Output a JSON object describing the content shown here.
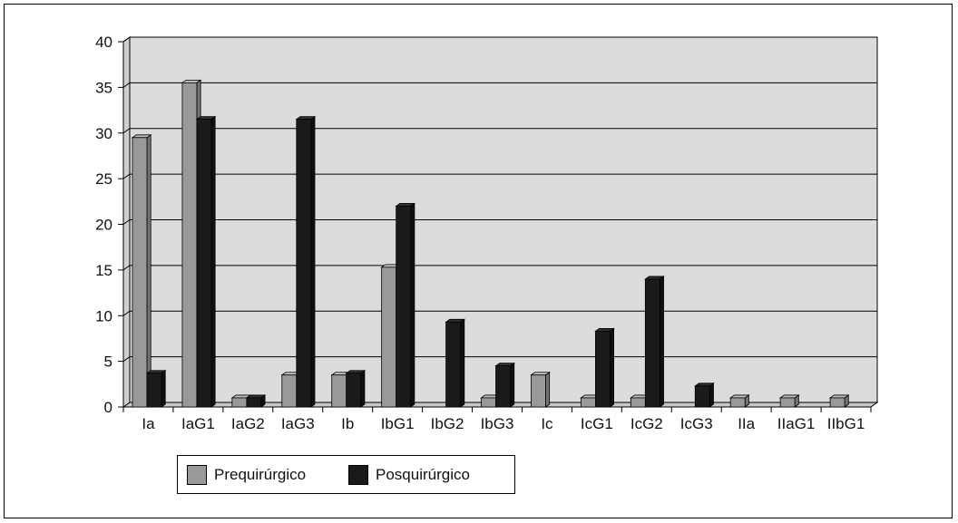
{
  "chart_data": {
    "type": "bar",
    "categories": [
      "Ia",
      "IaG1",
      "IaG2",
      "IaG3",
      "Ib",
      "IbG1",
      "IbG2",
      "IbG3",
      "Ic",
      "IcG1",
      "IcG2",
      "IcG3",
      "IIa",
      "IIaG1",
      "IIbG1"
    ],
    "series": [
      {
        "name": "Prequirúrgico",
        "color": "#999999",
        "values": [
          29.5,
          35.5,
          1,
          3.5,
          3.5,
          15.3,
          0,
          1,
          3.5,
          1,
          1,
          0,
          1,
          1,
          1
        ]
      },
      {
        "name": "Posquirúrgico",
        "color": "#1a1a1a",
        "values": [
          3.7,
          31.5,
          1,
          31.5,
          3.7,
          22,
          9.3,
          4.5,
          0,
          8.3,
          14,
          2.3,
          0,
          0,
          0
        ]
      }
    ],
    "yticks": [
      "0",
      "5",
      "10",
      "15",
      "20",
      "25",
      "30",
      "35",
      "40"
    ],
    "ylim": [
      0,
      40
    ],
    "grid": true,
    "legend": "bottom-left",
    "three_d": true
  }
}
